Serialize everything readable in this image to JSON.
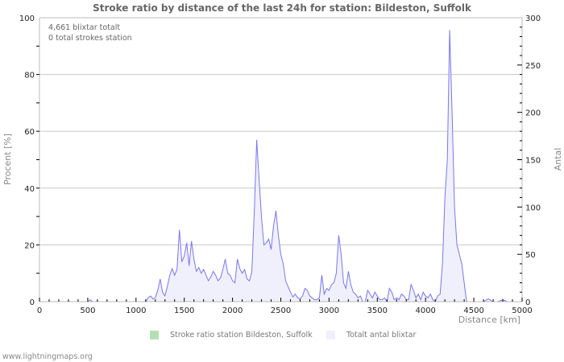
{
  "title": "Stroke ratio by distance of the last 24h for station: Bildeston, Suffolk",
  "info_lines": [
    "4,661 blixtar totalt",
    "0 total strokes station"
  ],
  "footer": "www.lightningmaps.org",
  "legend": [
    {
      "label": "Stroke ratio station Bildeston, Suffolk",
      "color": "#b3e0b3"
    },
    {
      "label": "Totalt antal blixtar",
      "color": "#f0f0fc"
    }
  ],
  "colors": {
    "line": "#7777ee",
    "fill": "#f0f0fc",
    "grid": "#c8c8c8",
    "axis": "#bbbbbb"
  },
  "chart_data": {
    "type": "area",
    "title": "Stroke ratio by distance of the last 24h for station: Bildeston, Suffolk",
    "xlabel": "Distance   [km]",
    "ylabel_left": "Procent   [%]",
    "ylabel_right": "Antal",
    "xlim": [
      0,
      5000
    ],
    "ylim_left": [
      0,
      100
    ],
    "ylim_right": [
      0,
      300
    ],
    "x_ticks": [
      0,
      500,
      1000,
      1500,
      2000,
      2500,
      3000,
      3500,
      4000,
      4500,
      5000
    ],
    "y_ticks_left": [
      0,
      20,
      40,
      60,
      80,
      100
    ],
    "y_ticks_right": [
      0,
      50,
      100,
      150,
      200,
      250,
      300
    ],
    "grid": true,
    "legend_position": "bottom",
    "series": [
      {
        "name": "Stroke ratio station Bildeston, Suffolk",
        "axis": "left",
        "x": [],
        "values": []
      },
      {
        "name": "Totalt antal blixtar",
        "axis": "right",
        "x": [
          0,
          500,
          525,
          550,
          1100,
          1125,
          1150,
          1175,
          1200,
          1225,
          1250,
          1275,
          1300,
          1325,
          1350,
          1375,
          1400,
          1425,
          1450,
          1475,
          1500,
          1525,
          1550,
          1575,
          1600,
          1625,
          1650,
          1675,
          1700,
          1725,
          1750,
          1775,
          1800,
          1825,
          1850,
          1875,
          1900,
          1925,
          1950,
          1975,
          2000,
          2025,
          2050,
          2075,
          2100,
          2125,
          2150,
          2175,
          2200,
          2225,
          2250,
          2275,
          2300,
          2325,
          2350,
          2375,
          2400,
          2425,
          2450,
          2475,
          2500,
          2525,
          2550,
          2575,
          2600,
          2625,
          2650,
          2675,
          2700,
          2725,
          2750,
          2775,
          2800,
          2825,
          2850,
          2875,
          2900,
          2925,
          2950,
          2975,
          3000,
          3025,
          3050,
          3075,
          3100,
          3125,
          3150,
          3175,
          3200,
          3225,
          3250,
          3275,
          3300,
          3325,
          3350,
          3375,
          3400,
          3425,
          3450,
          3475,
          3500,
          3525,
          3550,
          3575,
          3600,
          3625,
          3650,
          3675,
          3700,
          3725,
          3750,
          3775,
          3800,
          3825,
          3850,
          3875,
          3900,
          3925,
          3950,
          3975,
          4000,
          4025,
          4050,
          4075,
          4100,
          4125,
          4150,
          4175,
          4200,
          4225,
          4250,
          4275,
          4300,
          4325,
          4350,
          4375,
          4400,
          4425,
          4450,
          4500,
          4600,
          4650,
          4700,
          4750,
          4800,
          4850,
          4900,
          5000
        ],
        "values": [
          0,
          0,
          2,
          0,
          0,
          4,
          6,
          3,
          4,
          12,
          24,
          10,
          6,
          16,
          28,
          35,
          28,
          34,
          76,
          42,
          48,
          62,
          38,
          64,
          45,
          32,
          36,
          30,
          34,
          28,
          22,
          26,
          32,
          28,
          22,
          25,
          34,
          45,
          30,
          28,
          22,
          20,
          45,
          35,
          30,
          34,
          24,
          22,
          32,
          95,
          171,
          130,
          90,
          60,
          62,
          66,
          55,
          80,
          96,
          70,
          50,
          40,
          22,
          16,
          10,
          5,
          8,
          4,
          3,
          6,
          14,
          12,
          6,
          4,
          2,
          2,
          4,
          28,
          8,
          14,
          12,
          18,
          20,
          30,
          70,
          50,
          20,
          14,
          32,
          18,
          10,
          8,
          4,
          6,
          0,
          0,
          12,
          8,
          4,
          10,
          6,
          2,
          2,
          4,
          0,
          14,
          10,
          2,
          4,
          2,
          8,
          6,
          2,
          2,
          18,
          12,
          4,
          8,
          2,
          10,
          6,
          4,
          8,
          2,
          0,
          6,
          8,
          40,
          110,
          150,
          287,
          200,
          100,
          60,
          50,
          40,
          20,
          0,
          0,
          0,
          0,
          3,
          0,
          0,
          2,
          0,
          0,
          0
        ]
      }
    ]
  }
}
